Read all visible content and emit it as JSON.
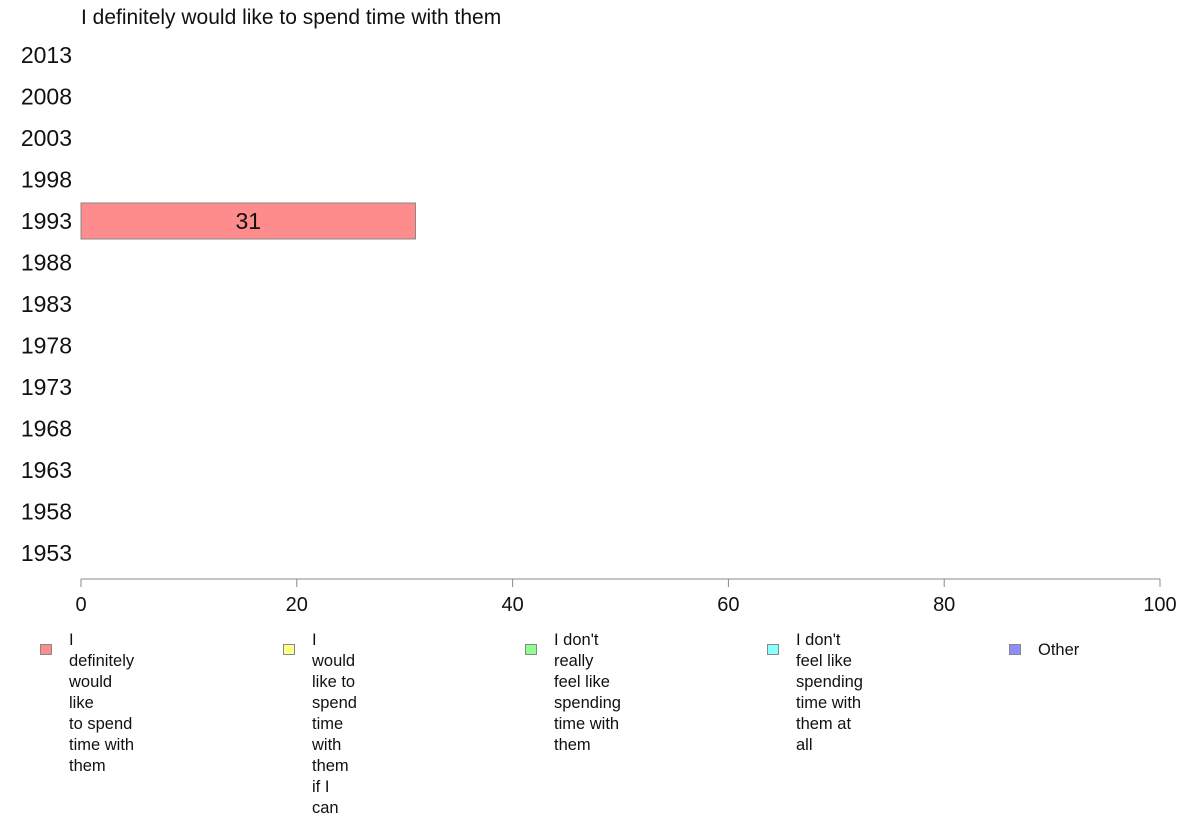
{
  "chart_data": {
    "type": "bar",
    "orientation": "horizontal",
    "stacked": true,
    "title": "I definitely would like to spend time with them",
    "categories": [
      "2013",
      "2008",
      "2003",
      "1998",
      "1993",
      "1988",
      "1983",
      "1978",
      "1973",
      "1968",
      "1963",
      "1958",
      "1953"
    ],
    "series": [
      {
        "name": "I definitely would like\nto spend time with them",
        "color": "#ff8c8c",
        "values": [
          null,
          null,
          null,
          null,
          31,
          null,
          null,
          null,
          null,
          null,
          null,
          null,
          null
        ]
      },
      {
        "name": "I would like to spend\ntime with them if I can",
        "color": "#ffff8c",
        "values": [
          null,
          null,
          null,
          null,
          null,
          null,
          null,
          null,
          null,
          null,
          null,
          null,
          null
        ]
      },
      {
        "name": "I don't really feel like\nspending time with them",
        "color": "#8cff8c",
        "values": [
          null,
          null,
          null,
          null,
          null,
          null,
          null,
          null,
          null,
          null,
          null,
          null,
          null
        ]
      },
      {
        "name": "I don't feel like spending\ntime with them at all",
        "color": "#8cffff",
        "values": [
          null,
          null,
          null,
          null,
          null,
          null,
          null,
          null,
          null,
          null,
          null,
          null,
          null
        ]
      },
      {
        "name": "Other",
        "color": "#8c8cff",
        "values": [
          null,
          null,
          null,
          null,
          null,
          null,
          null,
          null,
          null,
          null,
          null,
          null,
          null
        ]
      }
    ],
    "xlim": [
      0,
      100
    ],
    "xticks": [
      "0",
      "20",
      "40",
      "60",
      "80",
      "100"
    ],
    "grid": false,
    "legend_position": "bottom"
  }
}
